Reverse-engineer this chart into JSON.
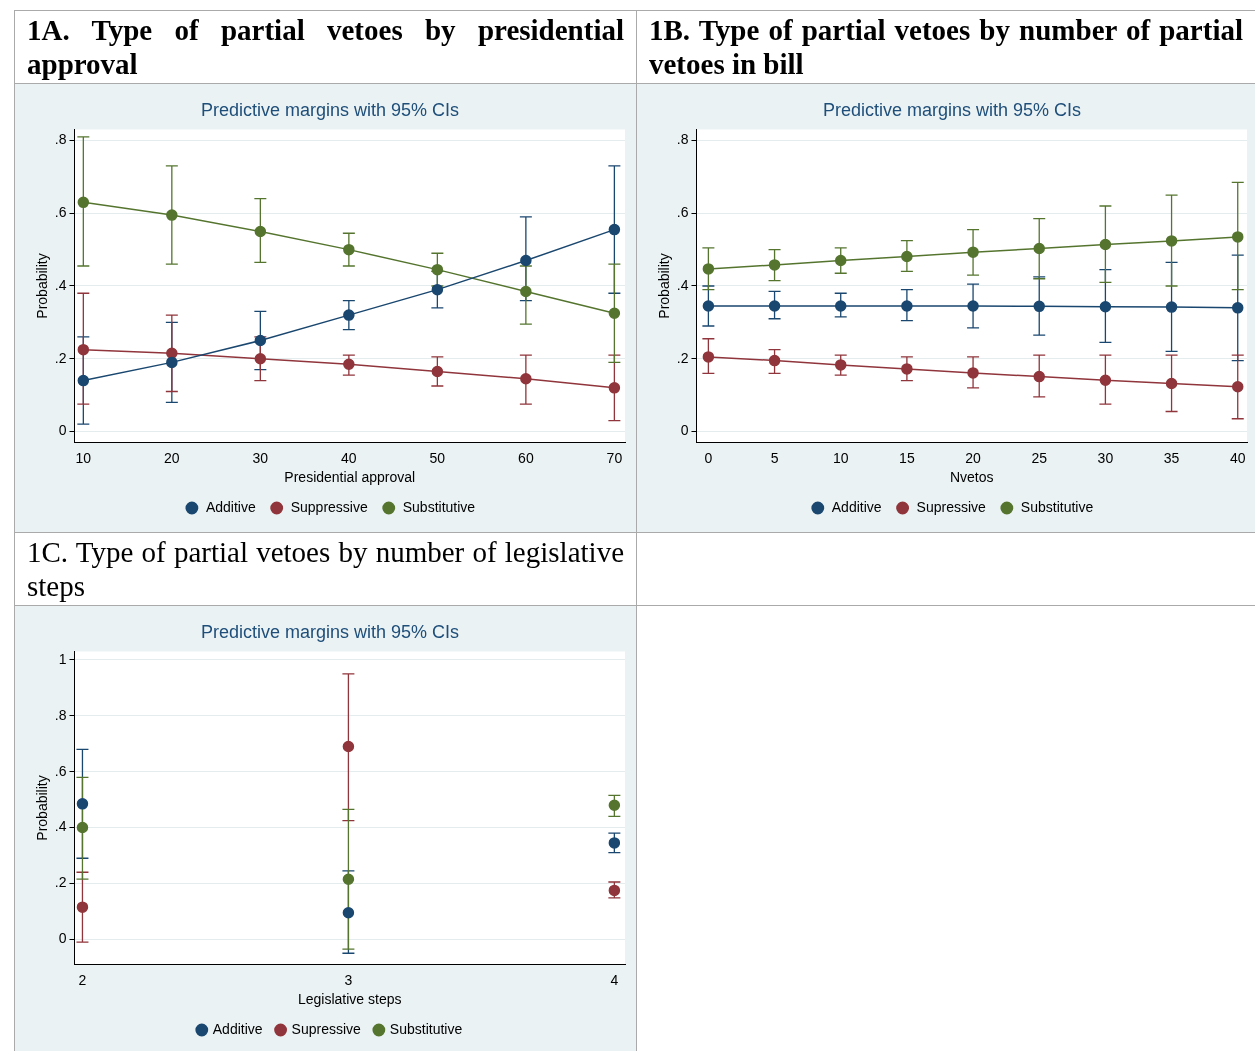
{
  "chart_data": [
    {
      "type": "line",
      "title": "1A. Type of partial vetoes by presidential approval",
      "subtitle": "Predictive margins with 95% CIs",
      "xlabel": "Presidential approval",
      "ylabel": "Probability",
      "x": [
        10,
        20,
        30,
        40,
        50,
        60,
        70
      ],
      "series": [
        {
          "name": "Additive",
          "color": "#1a476f",
          "values": [
            0.14,
            0.19,
            0.25,
            0.32,
            0.39,
            0.47,
            0.555
          ],
          "errors": [
            [
              0.02,
              0.26
            ],
            [
              0.08,
              0.3
            ],
            [
              0.17,
              0.33
            ],
            [
              0.28,
              0.36
            ],
            [
              0.34,
              0.44
            ],
            [
              0.36,
              0.59
            ],
            [
              0.38,
              0.73
            ]
          ]
        },
        {
          "name": "Suppressive",
          "color": "#90353b",
          "values": [
            0.225,
            0.215,
            0.2,
            0.185,
            0.165,
            0.145,
            0.12
          ],
          "errors": [
            [
              0.075,
              0.38
            ],
            [
              0.11,
              0.32
            ],
            [
              0.14,
              0.26
            ],
            [
              0.155,
              0.21
            ],
            [
              0.125,
              0.205
            ],
            [
              0.075,
              0.21
            ],
            [
              0.03,
              0.21
            ]
          ]
        },
        {
          "name": "Substitutive",
          "color": "#55752f",
          "values": [
            0.63,
            0.595,
            0.55,
            0.5,
            0.445,
            0.385,
            0.325
          ],
          "errors": [
            [
              0.455,
              0.81
            ],
            [
              0.46,
              0.73
            ],
            [
              0.465,
              0.64
            ],
            [
              0.455,
              0.545
            ],
            [
              0.4,
              0.49
            ],
            [
              0.295,
              0.455
            ],
            [
              0.19,
              0.46
            ]
          ]
        }
      ],
      "xlim": [
        9,
        71.2
      ],
      "xticks": [
        10,
        20,
        30,
        40,
        50,
        60,
        70
      ],
      "ylim": [
        -0.03,
        0.83
      ],
      "yticks": [
        {
          "value": 0,
          "label": "0"
        },
        {
          "value": 0.2,
          "label": ".2"
        },
        {
          "value": 0.4,
          "label": ".4"
        },
        {
          "value": 0.6,
          "label": ".6"
        },
        {
          "value": 0.8,
          "label": ".8"
        }
      ],
      "grid": "y",
      "legend": "bottom",
      "marker": "circle",
      "line_style": "solid"
    },
    {
      "type": "line",
      "title": "1B. Type of partial vetoes by number of partial vetoes in bill",
      "subtitle": "Predictive margins with 95% CIs",
      "xlabel": "Nvetos",
      "ylabel": "Probability",
      "x": [
        0,
        5,
        10,
        15,
        20,
        25,
        30,
        35,
        40
      ],
      "series": [
        {
          "name": "Additive",
          "color": "#1a476f",
          "values": [
            0.345,
            0.345,
            0.345,
            0.345,
            0.345,
            0.344,
            0.343,
            0.342,
            0.34
          ],
          "errors": [
            [
              0.29,
              0.4
            ],
            [
              0.31,
              0.385
            ],
            [
              0.315,
              0.38
            ],
            [
              0.305,
              0.39
            ],
            [
              0.285,
              0.405
            ],
            [
              0.265,
              0.425
            ],
            [
              0.245,
              0.445
            ],
            [
              0.22,
              0.465
            ],
            [
              0.195,
              0.485
            ]
          ]
        },
        {
          "name": "Supressive",
          "color": "#90353b",
          "values": [
            0.205,
            0.195,
            0.183,
            0.172,
            0.161,
            0.151,
            0.141,
            0.132,
            0.123
          ],
          "errors": [
            [
              0.16,
              0.255
            ],
            [
              0.16,
              0.225
            ],
            [
              0.155,
              0.21
            ],
            [
              0.14,
              0.205
            ],
            [
              0.12,
              0.205
            ],
            [
              0.095,
              0.21
            ],
            [
              0.075,
              0.21
            ],
            [
              0.055,
              0.21
            ],
            [
              0.035,
              0.21
            ]
          ]
        },
        {
          "name": "Substitutive",
          "color": "#55752f",
          "values": [
            0.447,
            0.458,
            0.47,
            0.481,
            0.493,
            0.503,
            0.514,
            0.524,
            0.535
          ],
          "errors": [
            [
              0.39,
              0.505
            ],
            [
              0.415,
              0.5
            ],
            [
              0.435,
              0.505
            ],
            [
              0.44,
              0.525
            ],
            [
              0.43,
              0.555
            ],
            [
              0.42,
              0.585
            ],
            [
              0.41,
              0.62
            ],
            [
              0.4,
              0.65
            ],
            [
              0.39,
              0.685
            ]
          ]
        }
      ],
      "xlim": [
        -0.9,
        40.7
      ],
      "xticks": [
        0,
        5,
        10,
        15,
        20,
        25,
        30,
        35,
        40
      ],
      "ylim": [
        -0.03,
        0.83
      ],
      "yticks": [
        {
          "value": 0,
          "label": "0"
        },
        {
          "value": 0.2,
          "label": ".2"
        },
        {
          "value": 0.4,
          "label": ".4"
        },
        {
          "value": 0.6,
          "label": ".6"
        },
        {
          "value": 0.8,
          "label": ".8"
        }
      ],
      "grid": "y",
      "legend": "bottom",
      "marker": "circle",
      "line_style": "solid"
    },
    {
      "type": "scatter",
      "title": "1C. Type of partial vetoes by number of legislative steps",
      "subtitle": "Predictive margins with 95% CIs",
      "xlabel": "Legislative steps",
      "ylabel": "Probability",
      "x": [
        2,
        3,
        4
      ],
      "series": [
        {
          "name": "Additive",
          "color": "#1a476f",
          "values": [
            0.485,
            0.095,
            0.345
          ],
          "errors": [
            [
              0.29,
              0.68
            ],
            [
              -0.05,
              0.245
            ],
            [
              0.31,
              0.38
            ]
          ]
        },
        {
          "name": "Supressive",
          "color": "#90353b",
          "values": [
            0.115,
            0.69,
            0.175
          ],
          "errors": [
            [
              -0.01,
              0.24
            ],
            [
              0.425,
              0.95
            ],
            [
              0.148,
              0.205
            ]
          ]
        },
        {
          "name": "Substitutive",
          "color": "#55752f",
          "values": [
            0.4,
            0.215,
            0.48
          ],
          "errors": [
            [
              0.215,
              0.58
            ],
            [
              -0.035,
              0.465
            ],
            [
              0.44,
              0.515
            ]
          ]
        }
      ],
      "xlim": [
        1.97,
        4.04
      ],
      "xticks": [
        2,
        3,
        4
      ],
      "ylim": [
        -0.09,
        1.03
      ],
      "yticks": [
        {
          "value": 0,
          "label": "0"
        },
        {
          "value": 0.2,
          "label": ".2"
        },
        {
          "value": 0.4,
          "label": ".4"
        },
        {
          "value": 0.6,
          "label": ".6"
        },
        {
          "value": 0.8,
          "label": ".8"
        },
        {
          "value": 1,
          "label": "1"
        }
      ],
      "grid": "y",
      "legend": "bottom",
      "marker": "circle"
    }
  ]
}
